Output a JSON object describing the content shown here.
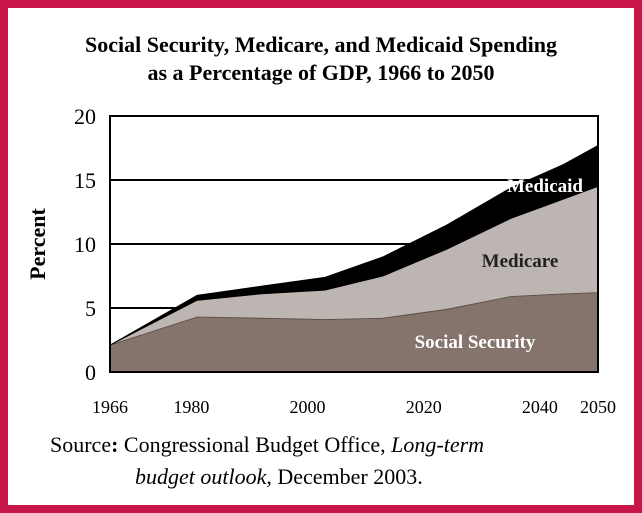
{
  "chart_data": {
    "type": "area",
    "title": "Social Security, Medicare, and Medicaid Spending",
    "subtitle": "as a Percentage of GDP, 1966 to 2050",
    "ylabel": "Percent",
    "xlabel": "",
    "ylim": [
      0,
      20
    ],
    "xlim": [
      1966,
      2050
    ],
    "x_ticks": [
      "1966",
      "1980",
      "2000",
      "2020",
      "2040",
      "2050"
    ],
    "y_ticks": [
      "0",
      "5",
      "10",
      "15",
      "20"
    ],
    "grid": "horizontal",
    "stacked": true,
    "x": [
      1966,
      1981,
      1992,
      2003,
      2013,
      2024,
      2035,
      2044,
      2050
    ],
    "series": [
      {
        "name": "Social Security",
        "values": [
          2.1,
          4.3,
          4.2,
          4.1,
          4.2,
          4.9,
          5.9,
          6.1,
          6.2
        ],
        "color": "#85746b"
      },
      {
        "name": "Medicare",
        "values": [
          0.0,
          1.3,
          1.9,
          2.3,
          3.3,
          4.7,
          6.1,
          7.4,
          8.3
        ],
        "color": "#bdb5b1"
      },
      {
        "name": "Medicaid",
        "values": [
          0.0,
          0.4,
          0.6,
          1.0,
          1.5,
          1.9,
          2.4,
          2.7,
          3.2
        ],
        "color": "#000000"
      }
    ],
    "series_label_colors": {
      "Social Security": "#ffffff",
      "Medicare": "#222222",
      "Medicaid": "#ffffff"
    }
  },
  "source": {
    "label": "Source",
    "colon": ":",
    "org": "Congressional Budget Office, ",
    "pub_part1": "Long-term",
    "pub_part2": "budget outlook",
    "rest": ", December 2003."
  },
  "colors": {
    "border": "#c8154a"
  }
}
